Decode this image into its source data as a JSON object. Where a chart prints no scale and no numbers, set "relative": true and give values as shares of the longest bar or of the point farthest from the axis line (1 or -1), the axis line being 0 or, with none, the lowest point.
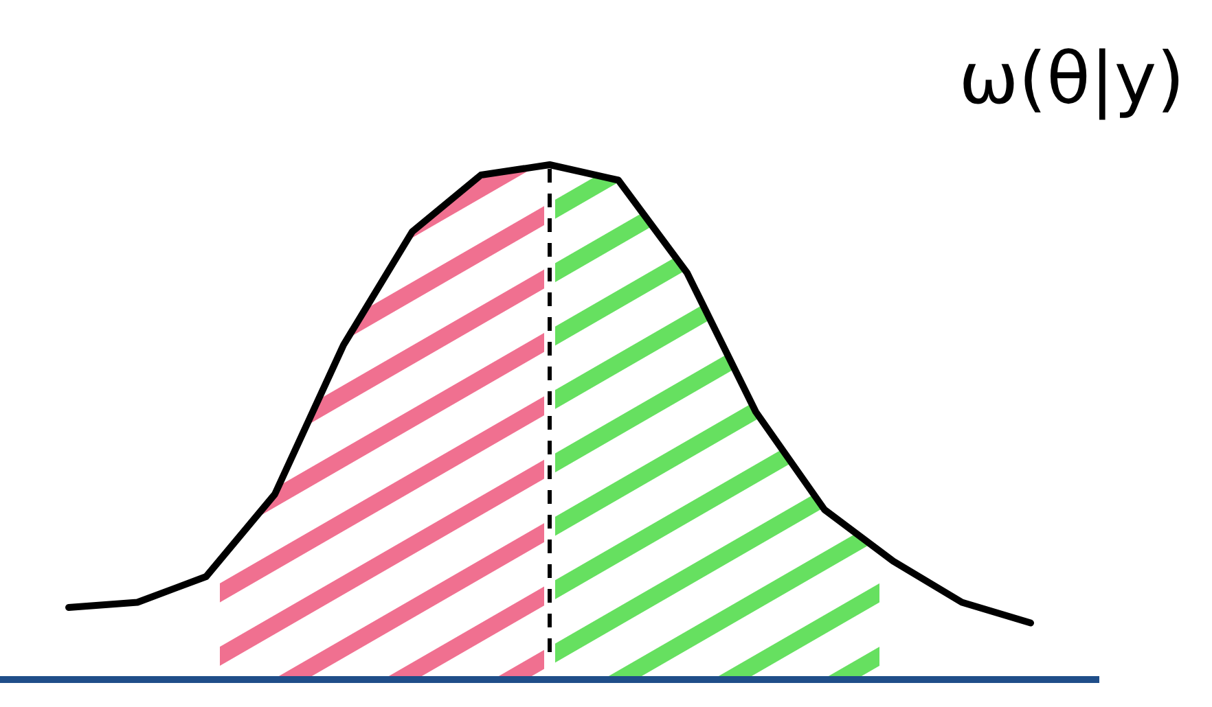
{
  "chart_data": {
    "type": "line",
    "title": "ω(θ|y)",
    "relative": true,
    "categories": [
      null,
      null,
      null,
      null,
      null,
      null,
      null,
      null,
      null,
      null,
      null,
      null,
      null,
      null,
      null
    ],
    "series": [
      {
        "color": "#000000",
        "values": [
          0.14,
          0.15,
          0.2,
          0.36,
          0.65,
          0.87,
          0.98,
          1.0,
          0.97,
          0.79,
          0.52,
          0.33,
          0.23,
          0.15,
          0.11
        ]
      }
    ]
  }
}
